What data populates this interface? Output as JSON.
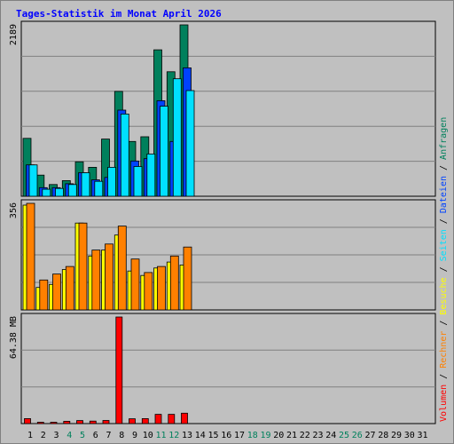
{
  "chart_data": {
    "type": "bar",
    "title": "Tages-Statistik im Monat April 2026",
    "days": [
      "1",
      "2",
      "3",
      "4",
      "5",
      "6",
      "7",
      "8",
      "9",
      "10",
      "11",
      "12",
      "13",
      "14",
      "15",
      "16",
      "17",
      "18",
      "19",
      "20",
      "21",
      "22",
      "23",
      "24",
      "25",
      "26",
      "27",
      "28",
      "29",
      "30",
      "31"
    ],
    "weekend_days": [
      "4",
      "5",
      "11",
      "12",
      "18",
      "19",
      "25",
      "26"
    ],
    "panels": [
      {
        "id": "hits",
        "ymax_label": "2189",
        "ymax": 2189,
        "series": [
          {
            "name": "Anfragen",
            "color": "#00805c",
            "values": [
              740,
              270,
              150,
              200,
              440,
              370,
              730,
              1340,
              700,
              760,
              1870,
              1590,
              2189,
              0,
              0,
              0,
              0,
              0,
              0,
              0,
              0,
              0,
              0,
              0,
              0,
              0,
              0,
              0,
              0,
              0,
              0
            ]
          },
          {
            "name": "Dateien",
            "color": "#0042ff",
            "values": [
              400,
              110,
              110,
              160,
              300,
              210,
              240,
              1100,
              450,
              480,
              1220,
              700,
              1640,
              0,
              0,
              0,
              0,
              0,
              0,
              0,
              0,
              0,
              0,
              0,
              0,
              0,
              0,
              0,
              0,
              0,
              0
            ]
          },
          {
            "name": "Seiten",
            "color": "#00e0ff",
            "values": [
              400,
              90,
              100,
              150,
              300,
              190,
              370,
              1050,
              380,
              540,
              1150,
              1500,
              1350,
              0,
              0,
              0,
              0,
              0,
              0,
              0,
              0,
              0,
              0,
              0,
              0,
              0,
              0,
              0,
              0,
              0,
              0
            ]
          }
        ]
      },
      {
        "id": "visits",
        "ymax_label": "356",
        "ymax": 356,
        "series": [
          {
            "name": "Besuche",
            "color": "#ffff00",
            "values": [
              350,
              75,
              85,
              135,
              290,
              180,
              200,
              250,
              130,
              115,
              140,
              160,
              150,
              0,
              0,
              0,
              0,
              0,
              0,
              0,
              0,
              0,
              0,
              0,
              0,
              0,
              0,
              0,
              0,
              0,
              0
            ]
          },
          {
            "name": "Rechner",
            "color": "#ff8000",
            "values": [
              356,
              100,
              120,
              145,
              290,
              200,
              220,
              280,
              170,
              125,
              145,
              180,
              210,
              0,
              0,
              0,
              0,
              0,
              0,
              0,
              0,
              0,
              0,
              0,
              0,
              0,
              0,
              0,
              0,
              0,
              0
            ]
          }
        ]
      },
      {
        "id": "volume",
        "ymax_label": "64.38 MB",
        "ymax": 64.38,
        "series": [
          {
            "name": "Volumen",
            "color": "#ff0000",
            "values": [
              3.0,
              0.8,
              0.8,
              1.4,
              1.8,
              1.5,
              1.9,
              64.38,
              2.9,
              3.0,
              5.6,
              5.6,
              6.3,
              0,
              0,
              0,
              0,
              0,
              0,
              0,
              0,
              0,
              0,
              0,
              0,
              0,
              0,
              0,
              0,
              0,
              0
            ]
          }
        ]
      }
    ],
    "legend": [
      "Volumen",
      "Rechner",
      "Besuche",
      "Seiten",
      "Dateien",
      "Anfragen"
    ]
  }
}
